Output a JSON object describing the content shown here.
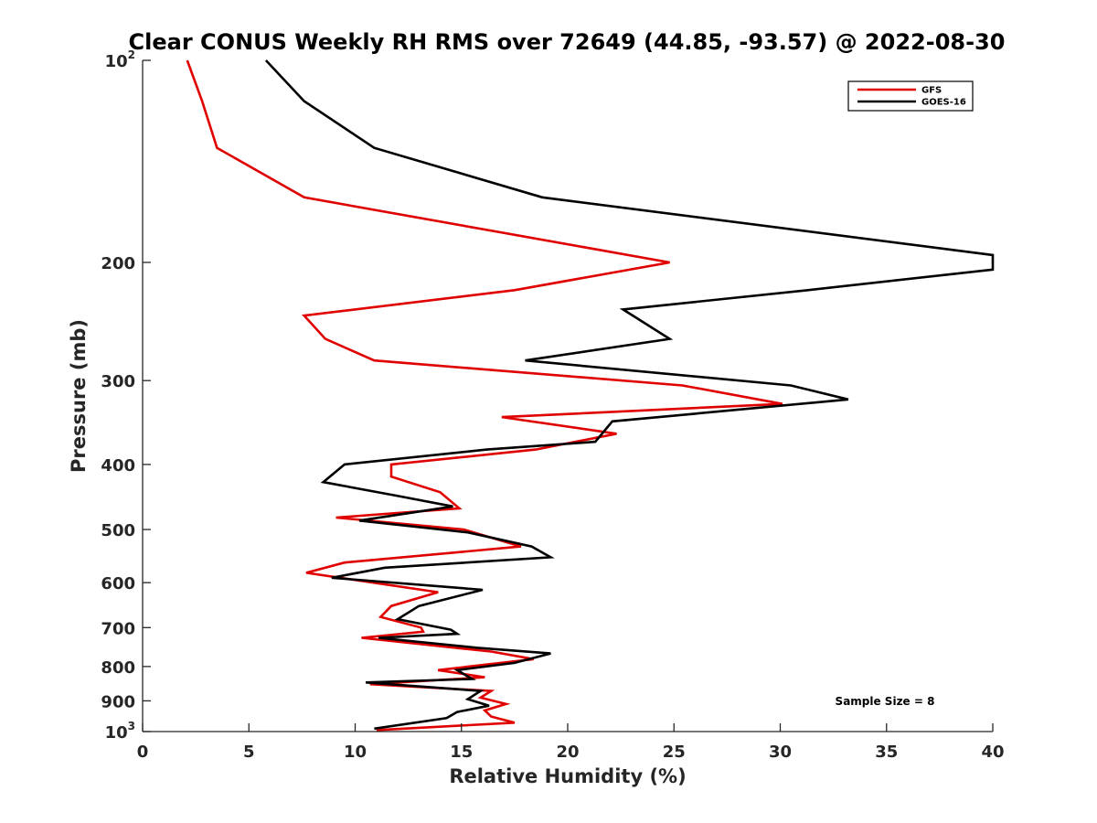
{
  "chart_data": {
    "type": "line",
    "title": "Clear CONUS Weekly RH RMS over 72649 (44.85, -93.57) @ 2022-08-30",
    "xlabel": "Relative Humidity (%)",
    "ylabel": "Pressure (mb)",
    "xlim": [
      0,
      40
    ],
    "ylim": [
      100,
      1000
    ],
    "y_scale": "log",
    "y_reversed": true,
    "x_ticks": [
      "0",
      "5",
      "10",
      "15",
      "20",
      "25",
      "30",
      "35",
      "40"
    ],
    "y_ticks": [
      {
        "value": 100,
        "label": "10",
        "sup": "2"
      },
      {
        "value": 200,
        "label": "200",
        "sup": ""
      },
      {
        "value": 300,
        "label": "300",
        "sup": ""
      },
      {
        "value": 400,
        "label": "400",
        "sup": ""
      },
      {
        "value": 500,
        "label": "500",
        "sup": ""
      },
      {
        "value": 600,
        "label": "600",
        "sup": ""
      },
      {
        "value": 700,
        "label": "700",
        "sup": ""
      },
      {
        "value": 800,
        "label": "800",
        "sup": ""
      },
      {
        "value": 900,
        "label": "900",
        "sup": ""
      },
      {
        "value": 1000,
        "label": "10",
        "sup": "3"
      }
    ],
    "grid": false,
    "legend_position": "top-right",
    "annotation": "Sample Size = 8",
    "series": [
      {
        "name": "GFS",
        "color": "#e00000",
        "points": [
          [
            2.1,
            100
          ],
          [
            2.8,
            115
          ],
          [
            3.5,
            135
          ],
          [
            7.6,
            160
          ],
          [
            24.8,
            200
          ],
          [
            17.5,
            220
          ],
          [
            7.6,
            240
          ],
          [
            8.6,
            260
          ],
          [
            10.9,
            280
          ],
          [
            25.4,
            305
          ],
          [
            30.1,
            325
          ],
          [
            16.9,
            340
          ],
          [
            22.3,
            360
          ],
          [
            18.5,
            380
          ],
          [
            11.7,
            400
          ],
          [
            11.7,
            417
          ],
          [
            14.0,
            440
          ],
          [
            14.9,
            465
          ],
          [
            9.1,
            480
          ],
          [
            15.1,
            500
          ],
          [
            17.8,
            530
          ],
          [
            9.5,
            560
          ],
          [
            7.7,
            580
          ],
          [
            13.9,
            620
          ],
          [
            11.7,
            650
          ],
          [
            11.2,
            675
          ],
          [
            13.1,
            700
          ],
          [
            13.2,
            710
          ],
          [
            10.3,
            725
          ],
          [
            16.4,
            760
          ],
          [
            18.4,
            780
          ],
          [
            13.9,
            810
          ],
          [
            16.1,
            830
          ],
          [
            10.7,
            850
          ],
          [
            16.4,
            870
          ],
          [
            15.9,
            890
          ],
          [
            17.1,
            910
          ],
          [
            16.1,
            930
          ],
          [
            16.4,
            950
          ],
          [
            17.5,
            970
          ],
          [
            11.0,
            995
          ]
        ]
      },
      {
        "name": "GOES-16",
        "color": "#000000",
        "points": [
          [
            5.8,
            100
          ],
          [
            7.6,
            115
          ],
          [
            10.9,
            135
          ],
          [
            18.8,
            160
          ],
          [
            40.0,
            195
          ],
          [
            40.0,
            205
          ],
          [
            31.3,
            220
          ],
          [
            22.6,
            235
          ],
          [
            24.8,
            260
          ],
          [
            18.0,
            280
          ],
          [
            30.5,
            305
          ],
          [
            33.2,
            320
          ],
          [
            22.1,
            345
          ],
          [
            21.3,
            370
          ],
          [
            16.2,
            380
          ],
          [
            9.5,
            400
          ],
          [
            8.5,
            425
          ],
          [
            11.9,
            445
          ],
          [
            14.6,
            462
          ],
          [
            10.2,
            485
          ],
          [
            15.3,
            505
          ],
          [
            18.3,
            530
          ],
          [
            19.2,
            550
          ],
          [
            11.4,
            570
          ],
          [
            8.9,
            590
          ],
          [
            16.0,
            615
          ],
          [
            13.0,
            650
          ],
          [
            12.0,
            680
          ],
          [
            14.5,
            705
          ],
          [
            14.8,
            715
          ],
          [
            11.1,
            725
          ],
          [
            15.7,
            750
          ],
          [
            19.2,
            765
          ],
          [
            17.5,
            790
          ],
          [
            14.8,
            810
          ],
          [
            15.5,
            835
          ],
          [
            10.5,
            845
          ],
          [
            15.9,
            870
          ],
          [
            15.3,
            895
          ],
          [
            16.3,
            915
          ],
          [
            14.8,
            935
          ],
          [
            14.3,
            955
          ],
          [
            10.9,
            990
          ]
        ]
      }
    ]
  }
}
